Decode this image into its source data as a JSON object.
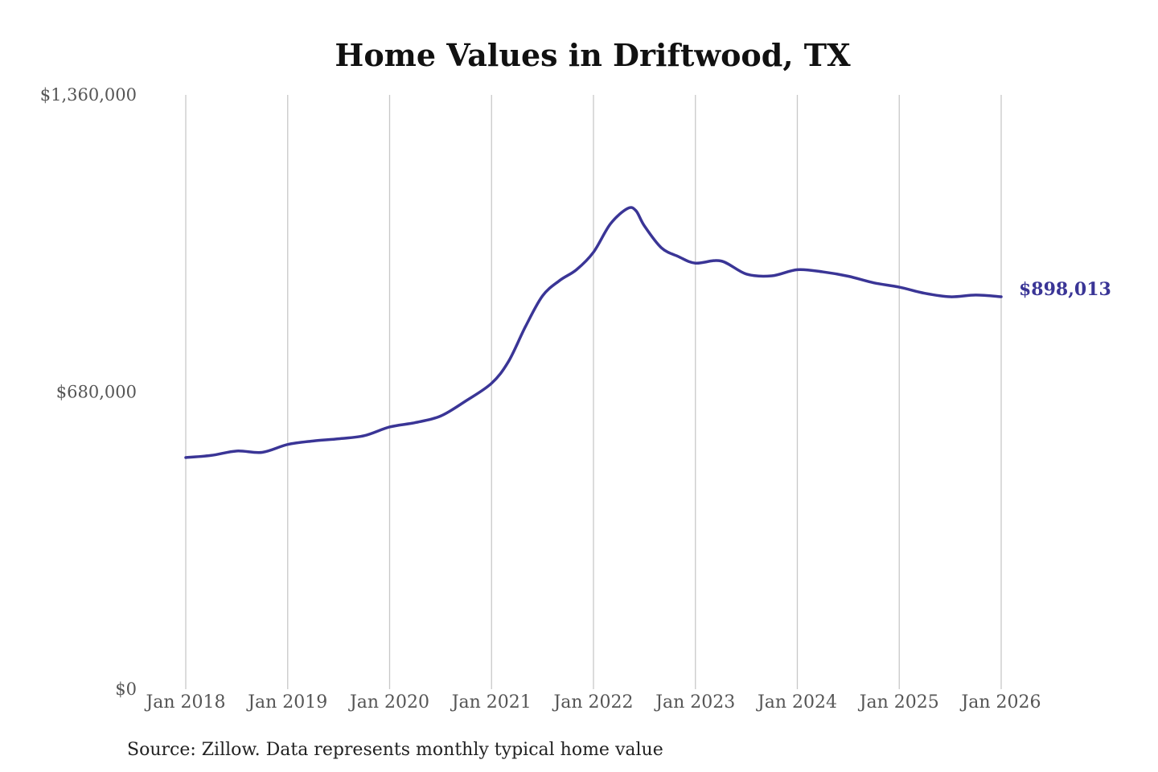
{
  "chart_data": {
    "type": "line",
    "title": "Home Values in Driftwood, TX",
    "xlabel": "",
    "ylabel": "",
    "ylim": [
      0,
      1360000
    ],
    "y_ticks": [
      0,
      680000,
      1360000
    ],
    "y_tick_labels": [
      "$0",
      "$680,000",
      "$1,360,000"
    ],
    "x_range": [
      "2018-01",
      "2026-01"
    ],
    "x_ticks": [
      "2018-01",
      "2019-01",
      "2020-01",
      "2021-01",
      "2022-01",
      "2023-01",
      "2024-01",
      "2025-01",
      "2026-01"
    ],
    "x_tick_labels": [
      "Jan 2018",
      "Jan 2019",
      "Jan 2020",
      "Jan 2021",
      "Jan 2022",
      "Jan 2023",
      "Jan 2024",
      "Jan 2025",
      "Jan 2026"
    ],
    "grid": "vertical",
    "legend": "none",
    "series": [
      {
        "color": "#3a3596",
        "x": [
          "2018-01",
          "2018-04",
          "2018-07",
          "2018-10",
          "2019-01",
          "2019-04",
          "2019-07",
          "2019-10",
          "2020-01",
          "2020-04",
          "2020-07",
          "2020-10",
          "2021-01",
          "2021-03",
          "2021-05",
          "2021-07",
          "2021-09",
          "2021-11",
          "2022-01",
          "2022-03",
          "2022-05",
          "2022-06",
          "2022-07",
          "2022-09",
          "2022-11",
          "2023-01",
          "2023-04",
          "2023-07",
          "2023-10",
          "2024-01",
          "2024-04",
          "2024-07",
          "2024-10",
          "2025-01",
          "2025-04",
          "2025-07",
          "2025-10",
          "2026-01"
        ],
        "values": [
          530000,
          535000,
          545000,
          542000,
          560000,
          568000,
          573000,
          580000,
          600000,
          610000,
          625000,
          660000,
          700000,
          750000,
          830000,
          900000,
          935000,
          960000,
          1000000,
          1065000,
          1100000,
          1095000,
          1060000,
          1010000,
          990000,
          975000,
          980000,
          950000,
          946000,
          960000,
          955000,
          945000,
          930000,
          920000,
          906000,
          898000,
          902000,
          898013
        ]
      }
    ],
    "end_label": "$898,013"
  },
  "source_note": "Source: Zillow. Data represents monthly typical home value"
}
